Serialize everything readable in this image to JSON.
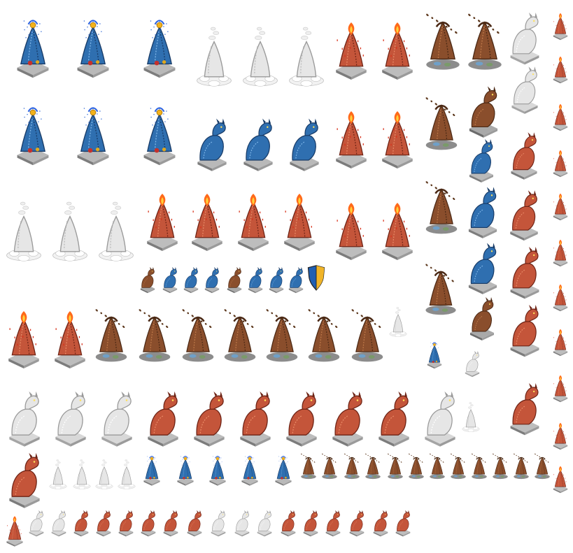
{
  "sheet": {
    "background": "#ffffff",
    "palettes": {
      "blue": {
        "body": "#2f6fb0",
        "dark": "#173a66",
        "light": "#7fb6e8",
        "base": "#b9b9b9",
        "baseDark": "#7d7d7d"
      },
      "white": {
        "body": "#e6e6e6",
        "dark": "#9a9a9a",
        "light": "#ffffff",
        "base": "#d8d8d8",
        "baseDark": "#a5a5a5"
      },
      "red": {
        "body": "#c4553a",
        "dark": "#6e2416",
        "light": "#e98a66",
        "base": "#bdbdbd",
        "baseDark": "#7c7c7c"
      },
      "brown": {
        "body": "#8a4e2c",
        "dark": "#4a2814",
        "light": "#c07a4a",
        "base": "#a9a9a9",
        "baseDark": "#6c6c6c"
      },
      "fire": {
        "flame": "#ff6a1a",
        "flameCore": "#ffd23a"
      },
      "crest": {
        "left": "#1f5fb3",
        "right": "#f0b428",
        "rim": "#222222"
      }
    },
    "sprite_kinds": [
      "fountain-statue",
      "steam-statue",
      "fire-statue",
      "mud-statue",
      "dragon-statue",
      "shield-icon"
    ]
  }
}
